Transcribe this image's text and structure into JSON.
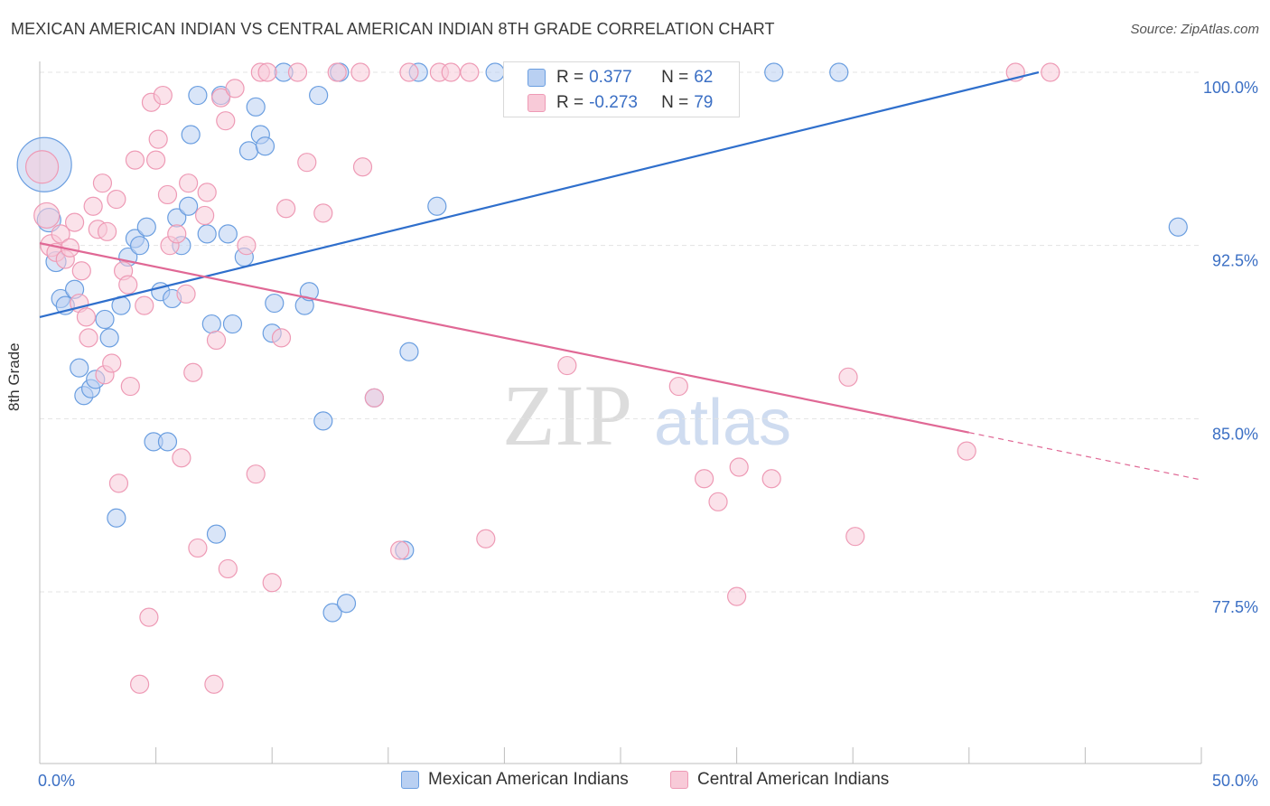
{
  "title": "MEXICAN AMERICAN INDIAN VS CENTRAL AMERICAN INDIAN 8TH GRADE CORRELATION CHART",
  "source": "Source: ZipAtlas.com",
  "watermark": {
    "zip": "ZIP",
    "atlas": "atlas"
  },
  "stats_legend": {
    "rows": [
      {
        "r_label": "R =",
        "r_value": "0.377",
        "n_label": "N =",
        "n_value": "62"
      },
      {
        "r_label": "R =",
        "r_value": "-0.273",
        "n_label": "N =",
        "n_value": "79"
      }
    ]
  },
  "chart_data": {
    "type": "scatter",
    "xlabel": "",
    "ylabel": "8th Grade",
    "xlim": [
      0,
      50
    ],
    "ylim": [
      70.5,
      101.5
    ],
    "x_tick_labels": [
      {
        "value": 0,
        "label": "0.0%"
      },
      {
        "value": 50,
        "label": "50.0%"
      }
    ],
    "y_ticks": [
      {
        "value": 100.0,
        "label": "100.0%"
      },
      {
        "value": 92.5,
        "label": "92.5%"
      },
      {
        "value": 85.0,
        "label": "85.0%"
      },
      {
        "value": 77.5,
        "label": "77.5%"
      }
    ],
    "grid": true,
    "legend_position": "bottom",
    "series": [
      {
        "name": "Mexican American Indians",
        "color": "#6a9ee0",
        "fill": "#b9d0f2",
        "trend_color": "#2f6fcc",
        "trend": {
          "x0": 0,
          "y0": 89.4,
          "x1": 43.0,
          "y1": 100.0,
          "dash_to": null
        },
        "points": [
          [
            0.2,
            96.0,
            30
          ],
          [
            0.4,
            93.6,
            13
          ],
          [
            0.7,
            91.8,
            11
          ],
          [
            0.9,
            90.2,
            10
          ],
          [
            1.1,
            89.9,
            10
          ],
          [
            1.5,
            90.6,
            10
          ],
          [
            1.7,
            87.2,
            10
          ],
          [
            1.9,
            86.0,
            10
          ],
          [
            2.2,
            86.3,
            10
          ],
          [
            2.4,
            86.7,
            10
          ],
          [
            2.8,
            89.3,
            10
          ],
          [
            3.0,
            88.5,
            10
          ],
          [
            3.3,
            80.7,
            10
          ],
          [
            3.5,
            89.9,
            10
          ],
          [
            3.8,
            92.0,
            10
          ],
          [
            4.1,
            92.8,
            10
          ],
          [
            4.3,
            92.5,
            10
          ],
          [
            4.6,
            93.3,
            10
          ],
          [
            4.9,
            84.0,
            10
          ],
          [
            5.2,
            90.5,
            10
          ],
          [
            5.5,
            84.0,
            10
          ],
          [
            5.7,
            90.2,
            10
          ],
          [
            5.9,
            93.7,
            10
          ],
          [
            6.1,
            92.5,
            10
          ],
          [
            6.4,
            94.2,
            10
          ],
          [
            6.5,
            97.3,
            10
          ],
          [
            6.8,
            99.0,
            10
          ],
          [
            7.2,
            93.0,
            10
          ],
          [
            7.4,
            89.1,
            10
          ],
          [
            7.6,
            80.0,
            10
          ],
          [
            7.8,
            99.0,
            10
          ],
          [
            8.1,
            93.0,
            10
          ],
          [
            8.3,
            89.1,
            10
          ],
          [
            8.8,
            92.0,
            10
          ],
          [
            9.0,
            96.6,
            10
          ],
          [
            9.3,
            98.5,
            10
          ],
          [
            9.5,
            97.3,
            10
          ],
          [
            9.7,
            96.8,
            10
          ],
          [
            10.1,
            90.0,
            10
          ],
          [
            10.0,
            88.7,
            10
          ],
          [
            10.5,
            100.0,
            10
          ],
          [
            11.4,
            89.9,
            10
          ],
          [
            11.6,
            90.5,
            10
          ],
          [
            12.0,
            99.0,
            10
          ],
          [
            12.2,
            84.9,
            10
          ],
          [
            12.6,
            76.6,
            10
          ],
          [
            12.9,
            100.0,
            10
          ],
          [
            13.2,
            77.0,
            10
          ],
          [
            14.4,
            85.9,
            10
          ],
          [
            15.7,
            79.3,
            10
          ],
          [
            15.9,
            87.9,
            10
          ],
          [
            16.3,
            100.0,
            10
          ],
          [
            17.1,
            94.2,
            10
          ],
          [
            19.6,
            100.0,
            10
          ],
          [
            22.7,
            100.0,
            10
          ],
          [
            23.5,
            100.0,
            10
          ],
          [
            25.2,
            100.0,
            10
          ],
          [
            27.8,
            100.0,
            10
          ],
          [
            29.6,
            100.0,
            10
          ],
          [
            31.6,
            100.0,
            10
          ],
          [
            34.4,
            100.0,
            10
          ],
          [
            49.0,
            93.3,
            10
          ]
        ]
      },
      {
        "name": "Central American Indians",
        "color": "#ee9ab5",
        "fill": "#f8cad8",
        "trend_color": "#e06895",
        "trend": {
          "x0": 0,
          "y0": 92.6,
          "x1": 40.0,
          "y1": 84.4,
          "dash_to": 50.0
        },
        "points": [
          [
            0.1,
            95.9,
            18
          ],
          [
            0.3,
            93.8,
            14
          ],
          [
            0.5,
            92.5,
            12
          ],
          [
            0.7,
            92.2,
            10
          ],
          [
            0.9,
            93.0,
            10
          ],
          [
            1.1,
            91.9,
            10
          ],
          [
            1.3,
            92.4,
            10
          ],
          [
            1.5,
            93.5,
            10
          ],
          [
            1.7,
            90.0,
            10
          ],
          [
            1.8,
            91.4,
            10
          ],
          [
            2.0,
            89.4,
            10
          ],
          [
            2.1,
            88.5,
            10
          ],
          [
            2.3,
            94.2,
            10
          ],
          [
            2.5,
            93.2,
            10
          ],
          [
            2.7,
            95.2,
            10
          ],
          [
            2.8,
            86.9,
            10
          ],
          [
            2.9,
            93.1,
            10
          ],
          [
            3.1,
            87.4,
            10
          ],
          [
            3.3,
            94.5,
            10
          ],
          [
            3.4,
            82.2,
            10
          ],
          [
            3.6,
            91.4,
            10
          ],
          [
            3.8,
            90.8,
            10
          ],
          [
            3.9,
            86.4,
            10
          ],
          [
            4.1,
            96.2,
            10
          ],
          [
            4.3,
            73.5,
            10
          ],
          [
            4.5,
            89.9,
            10
          ],
          [
            4.7,
            76.4,
            10
          ],
          [
            4.8,
            98.7,
            10
          ],
          [
            5.0,
            96.2,
            10
          ],
          [
            5.1,
            97.1,
            10
          ],
          [
            5.3,
            99.0,
            10
          ],
          [
            5.5,
            94.7,
            10
          ],
          [
            5.6,
            92.5,
            10
          ],
          [
            5.9,
            93.0,
            10
          ],
          [
            6.1,
            83.3,
            10
          ],
          [
            6.3,
            90.4,
            10
          ],
          [
            6.4,
            95.2,
            10
          ],
          [
            6.6,
            87.0,
            10
          ],
          [
            6.8,
            79.4,
            10
          ],
          [
            7.1,
            93.8,
            10
          ],
          [
            7.2,
            94.8,
            10
          ],
          [
            7.5,
            73.5,
            10
          ],
          [
            7.6,
            88.4,
            10
          ],
          [
            7.8,
            98.9,
            10
          ],
          [
            8.0,
            97.9,
            10
          ],
          [
            8.1,
            78.5,
            10
          ],
          [
            8.4,
            99.3,
            10
          ],
          [
            8.9,
            92.5,
            10
          ],
          [
            9.3,
            82.6,
            10
          ],
          [
            9.5,
            100.0,
            10
          ],
          [
            9.8,
            100.0,
            10
          ],
          [
            10.0,
            77.9,
            10
          ],
          [
            10.4,
            88.5,
            10
          ],
          [
            10.6,
            94.1,
            10
          ],
          [
            11.1,
            100.0,
            10
          ],
          [
            11.5,
            96.1,
            10
          ],
          [
            12.2,
            93.9,
            10
          ],
          [
            12.8,
            100.0,
            10
          ],
          [
            13.8,
            100.0,
            10
          ],
          [
            13.9,
            95.9,
            10
          ],
          [
            14.4,
            85.9,
            10
          ],
          [
            15.5,
            79.3,
            10
          ],
          [
            15.9,
            100.0,
            10
          ],
          [
            17.2,
            100.0,
            10
          ],
          [
            17.7,
            100.0,
            10
          ],
          [
            18.5,
            100.0,
            10
          ],
          [
            19.2,
            79.8,
            10
          ],
          [
            22.7,
            87.3,
            10
          ],
          [
            27.5,
            86.4,
            10
          ],
          [
            28.6,
            82.4,
            10
          ],
          [
            29.2,
            81.4,
            10
          ],
          [
            30.0,
            77.3,
            10
          ],
          [
            30.1,
            82.9,
            10
          ],
          [
            31.5,
            82.4,
            10
          ],
          [
            34.8,
            86.8,
            10
          ],
          [
            35.1,
            79.9,
            10
          ],
          [
            39.9,
            83.6,
            10
          ],
          [
            42.0,
            100.0,
            10
          ],
          [
            43.5,
            100.0,
            10
          ]
        ]
      }
    ]
  }
}
